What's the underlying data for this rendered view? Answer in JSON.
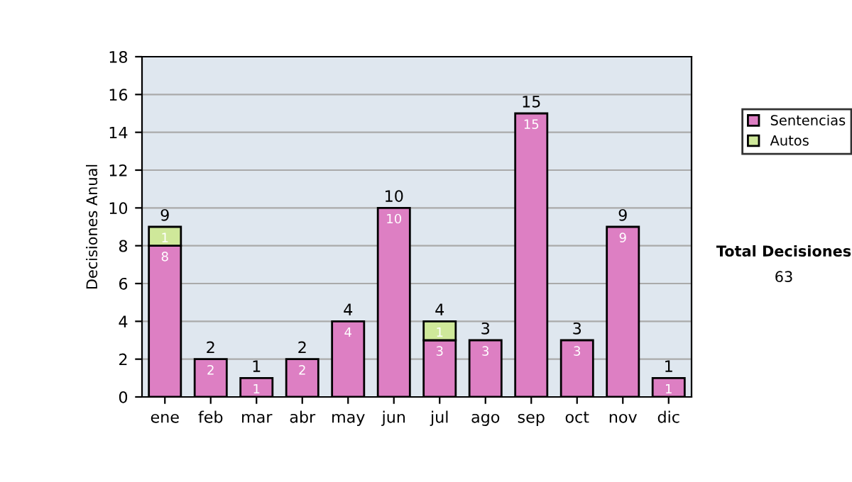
{
  "chart_data": {
    "type": "bar",
    "stacked": true,
    "ylabel": "Decisiones Anual",
    "categories": [
      "ene",
      "feb",
      "mar",
      "abr",
      "may",
      "jun",
      "jul",
      "ago",
      "sep",
      "oct",
      "nov",
      "dic"
    ],
    "series": [
      {
        "name": "Sentencias",
        "color": "#dd7fc3",
        "values": [
          8,
          2,
          1,
          2,
          4,
          10,
          3,
          3,
          15,
          3,
          9,
          1
        ]
      },
      {
        "name": "Autos",
        "color": "#cfe89a",
        "values": [
          1,
          null,
          null,
          null,
          null,
          null,
          1,
          null,
          null,
          null,
          null,
          null
        ]
      }
    ],
    "totals": [
      "9",
      "2",
      "1",
      "2",
      "4",
      "10",
      "4",
      "3",
      "15",
      "3",
      "9",
      "1"
    ],
    "data_labels": true,
    "ylim": [
      0,
      18
    ],
    "yticks": [
      0,
      2,
      4,
      6,
      8,
      10,
      12,
      14,
      16,
      18
    ],
    "grid": "y",
    "legend": "right",
    "annotations": [
      "Total Decisiones",
      "63"
    ]
  }
}
